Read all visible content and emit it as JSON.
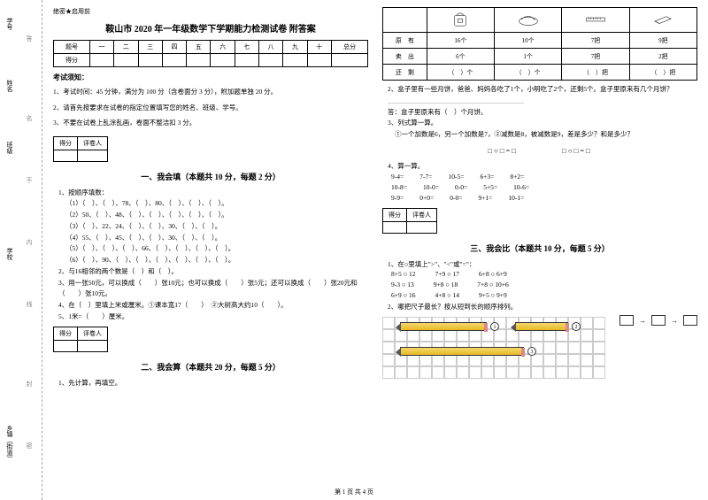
{
  "classification": "绝密★启用前",
  "title": "鞍山市 2020 年一年级数学下学期能力检测试卷 附答案",
  "score_headers": [
    "题号",
    "一",
    "二",
    "三",
    "四",
    "五",
    "六",
    "七",
    "八",
    "九",
    "十",
    "总分"
  ],
  "score_row_label": "得分",
  "notice_head": "考试须知：",
  "notice": [
    "1、考试时间：45 分钟，满分为 100 分（含卷面分 3 分），附加题单独 20 分。",
    "2、请首先按要求在试卷的指定位置填写您的姓名、班级、学号。",
    "3、不要在试卷上乱涂乱画，卷面不整洁扣 3 分。"
  ],
  "box_labels": {
    "score": "得分",
    "marker": "评卷人"
  },
  "section1": "一、我会填（本题共 10 分，每题 2 分）",
  "q1_head": "1、按顺序填数：",
  "q1_lines": [
    "（1）（　）、（　）、78、（　）、80、（　）、（　）、（　）。",
    "（2）50、（　）、48、（　）、（　）、（　）、（　）、（　）。",
    "（3）（　）、22、24、（　）、（　）、30、（　）、（　）。",
    "（4）55、（　）、45、（　）、（　）、30、（　）、（　）。",
    "（5）（　）、（　）、（　）、66、（　）、（　）、（　）、（　）。",
    "（6）（　）、90、（　）、（　）、（　）、（　）、（　）、（　）。"
  ],
  "q2": "2、与16相邻的两个数是（　）和（　）。",
  "q3": "3、用一张50元，可以换成（　　）张10元；也可以换成（　　）张5元；还可以换成（　　）张20元和（　　）张10元。",
  "q4": "4、在（　）里填上米或厘米。①课本宽17（　　）　②大树高大约10（　　）。",
  "q5": "5、1米=（　　）厘米。",
  "section2": "二、我会算（本题共 20 分，每题 5 分）",
  "s2_q1": "1、先计算，再填空。",
  "item_rows": {
    "r1": "原　有",
    "r2": "卖　出",
    "r3": "还　剩",
    "vals": [
      [
        "16个",
        "10个",
        "7把",
        "9把"
      ],
      [
        "6个",
        "1个",
        "7把",
        "2把"
      ],
      [
        "（　）个",
        "（　）个",
        "（　）把",
        "（　）把"
      ]
    ]
  },
  "s2_q2": "2、盒子里有一些月饼，爸爸、妈妈各吃了1个，小明吃了2个，还剩5个。盒子里原来有几个月饼？",
  "s2_q2_blank": "_________________________________________",
  "s2_q2_ans": "答：盒子里原来有（　）个月饼。",
  "s2_q3": "3、列式算一算。",
  "s2_q3_sub": "①一个加数是6，另一个加数是7，②减数是8，被减数是9，差是多少？和是多少？",
  "formula": "□○□=□　　　　　□○□=□",
  "s2_q4": "4、算一算。",
  "calc": [
    [
      "9-4=",
      "7-7=",
      "10-5=",
      "6+3=",
      "8+2="
    ],
    [
      "10-8=",
      "10-0=",
      "0-0=",
      "5+5=",
      "10-6="
    ],
    [
      "9-9=",
      "0+0=",
      "0-0=",
      "9+1=",
      "10-1="
    ]
  ],
  "section3": "三、我会比（本题共 10 分，每题 5 分）",
  "s3_q1": "1、在○里填上\">\"、\"<\"或\"=\"：",
  "compare": [
    [
      "8+5 ○ 12",
      "7+9 ○ 17",
      "6+8 ○ 6+9"
    ],
    [
      "9-3 ○ 13",
      "9+8 ○ 18",
      "7+8 ○ 10+6"
    ],
    [
      "6+9 ○ 16",
      "4+8 ○ 14",
      "9+5 ○ 9+9"
    ]
  ],
  "s3_q2": "2、哪把尺子最长？按从短到长的顺序排列。",
  "pencil_nums": [
    "1",
    "2",
    "3"
  ],
  "footer": "第 1 页 共 4 页",
  "binding": {
    "l1": "学号",
    "l2": "姓名",
    "l3": "班级",
    "l4": "学校",
    "l5": "乡镇（街道）",
    "dash": "｜｜｜｜"
  }
}
